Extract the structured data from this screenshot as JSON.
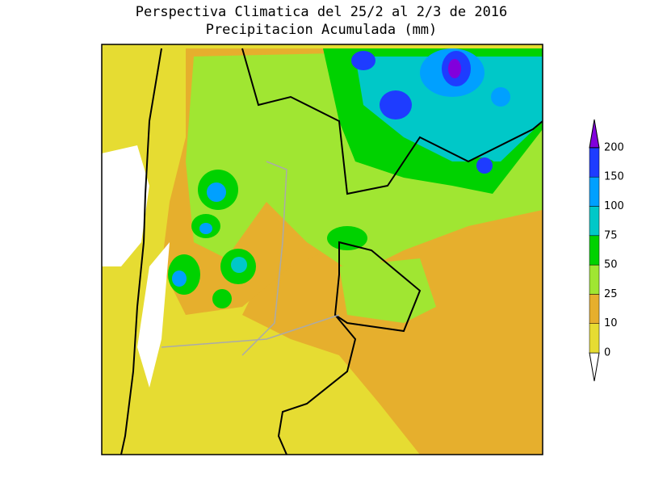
{
  "title": [
    "Perspectiva Climatica del 25/2 al 2/3 de 2016",
    "Precipitacion Acumulada (mm)"
  ],
  "colorbar": {
    "levels": [
      0,
      10,
      25,
      50,
      75,
      100,
      150,
      200
    ],
    "colors": [
      "#ffffff",
      "#e6dc32",
      "#e6af2d",
      "#a0e632",
      "#00d200",
      "#00c8c8",
      "#00a0ff",
      "#1e3cff",
      "#8200dc"
    ]
  }
}
